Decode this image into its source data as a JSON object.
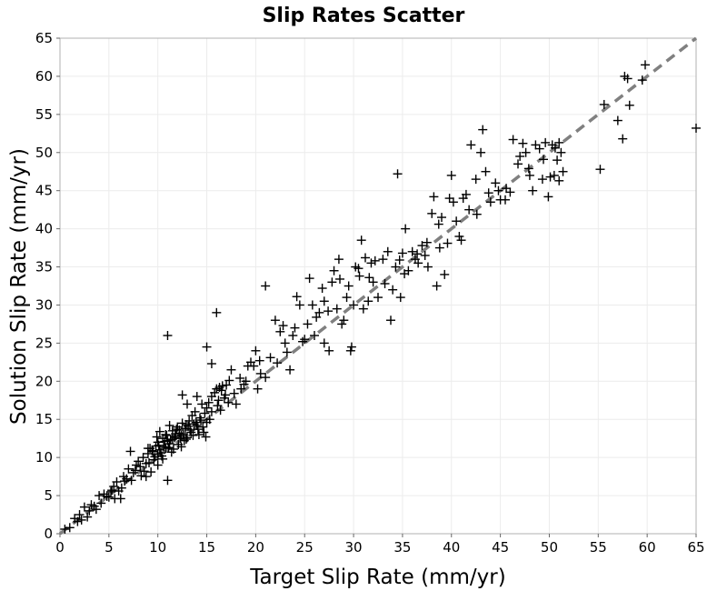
{
  "chart_data": {
    "type": "scatter",
    "title": "Slip Rates Scatter",
    "xlabel": "Target Slip Rate (mm/yr)",
    "ylabel": "Solution Slip Rate (mm/yr)",
    "xlim": [
      0,
      65
    ],
    "ylim": [
      0,
      65
    ],
    "xticks": [
      0,
      5,
      10,
      15,
      20,
      25,
      30,
      35,
      40,
      45,
      50,
      55,
      60,
      65
    ],
    "yticks": [
      0,
      5,
      10,
      15,
      20,
      25,
      30,
      35,
      40,
      45,
      50,
      55,
      60,
      65
    ],
    "grid": true,
    "marker": "plus",
    "reference_line": {
      "style": "dashed",
      "color": "#808080",
      "from": [
        0,
        0
      ],
      "to": [
        65,
        65
      ]
    },
    "series": [
      {
        "color": "#000000",
        "points": [
          [
            0.5,
            0.6
          ],
          [
            1.0,
            0.8
          ],
          [
            1.5,
            2.0
          ],
          [
            2.0,
            2.5
          ],
          [
            2.2,
            1.8
          ],
          [
            2.5,
            3.5
          ],
          [
            3.0,
            3.0
          ],
          [
            3.2,
            3.8
          ],
          [
            4.0,
            5.0
          ],
          [
            4.5,
            5.2
          ],
          [
            5.0,
            4.8
          ],
          [
            5.2,
            5.5
          ],
          [
            5.5,
            6.2
          ],
          [
            5.8,
            6.8
          ],
          [
            6.0,
            5.6
          ],
          [
            6.2,
            4.6
          ],
          [
            6.5,
            7.5
          ],
          [
            6.8,
            7.2
          ],
          [
            7.0,
            8.5
          ],
          [
            7.2,
            10.8
          ],
          [
            7.5,
            8.0
          ],
          [
            7.8,
            9.0
          ],
          [
            8.0,
            9.5
          ],
          [
            8.2,
            8.8
          ],
          [
            8.5,
            10.0
          ],
          [
            8.8,
            9.2
          ],
          [
            9.0,
            10.5
          ],
          [
            9.2,
            11.2
          ],
          [
            9.5,
            10.8
          ],
          [
            9.8,
            11.5
          ],
          [
            10.0,
            12.0
          ],
          [
            10.2,
            11.0
          ],
          [
            10.5,
            12.5
          ],
          [
            10.8,
            13.0
          ],
          [
            11.0,
            12.2
          ],
          [
            11.2,
            11.8
          ],
          [
            11.5,
            13.5
          ],
          [
            11.8,
            12.8
          ],
          [
            12.0,
            14.0
          ],
          [
            12.2,
            13.2
          ],
          [
            12.5,
            14.5
          ],
          [
            12.8,
            13.8
          ],
          [
            13.0,
            12.6
          ],
          [
            13.2,
            14.8
          ],
          [
            13.5,
            15.5
          ],
          [
            13.8,
            16.0
          ],
          [
            14.0,
            14.2
          ],
          [
            14.2,
            13.0
          ],
          [
            14.5,
            17.0
          ],
          [
            14.8,
            15.8
          ],
          [
            15.0,
            16.5
          ],
          [
            15.2,
            17.2
          ],
          [
            15.5,
            16.0
          ],
          [
            15.8,
            18.5
          ],
          [
            16.0,
            19.0
          ],
          [
            16.2,
            17.5
          ],
          [
            16.5,
            18.8
          ],
          [
            16.8,
            17.8
          ],
          [
            17.0,
            19.5
          ],
          [
            17.5,
            21.5
          ],
          [
            8.3,
            7.6
          ],
          [
            8.8,
            7.5
          ],
          [
            9.3,
            8.1
          ],
          [
            9.6,
            9.7
          ],
          [
            10.3,
            10.6
          ],
          [
            10.6,
            11.4
          ],
          [
            10.9,
            12.9
          ],
          [
            11.3,
            12.3
          ],
          [
            11.6,
            11.1
          ],
          [
            11.9,
            13.7
          ],
          [
            12.3,
            12.5
          ],
          [
            12.6,
            13.1
          ],
          [
            12.9,
            14.3
          ],
          [
            13.3,
            13.6
          ],
          [
            13.6,
            12.9
          ],
          [
            13.9,
            14.6
          ],
          [
            14.3,
            15.2
          ],
          [
            14.6,
            14.0
          ],
          [
            14.9,
            12.7
          ],
          [
            15.3,
            15.0
          ],
          [
            10.0,
            10.4
          ],
          [
            10.1,
            11.6
          ],
          [
            10.4,
            10.2
          ],
          [
            10.7,
            12.1
          ],
          [
            11.1,
            11.3
          ],
          [
            11.4,
            10.7
          ],
          [
            11.7,
            12.6
          ],
          [
            12.1,
            11.7
          ],
          [
            12.4,
            12.9
          ],
          [
            12.7,
            12.2
          ],
          [
            9.0,
            11.2
          ],
          [
            9.1,
            9.3
          ],
          [
            9.4,
            10.9
          ],
          [
            9.7,
            10.1
          ],
          [
            10.2,
            13.4
          ],
          [
            10.5,
            9.8
          ],
          [
            10.8,
            11.2
          ],
          [
            11.2,
            14.2
          ],
          [
            11.5,
            12.4
          ],
          [
            11.8,
            13.1
          ],
          [
            12.2,
            13.6
          ],
          [
            12.4,
            11.4
          ],
          [
            12.9,
            12.4
          ],
          [
            13.1,
            14.1
          ],
          [
            13.4,
            13.3
          ],
          [
            13.7,
            14.4
          ],
          [
            14.1,
            13.7
          ],
          [
            14.4,
            14.9
          ],
          [
            14.7,
            13.3
          ],
          [
            15.0,
            14.6
          ],
          [
            11.0,
            26.0
          ],
          [
            11.0,
            7.0
          ],
          [
            10.0,
            9.0
          ],
          [
            12.5,
            18.2
          ],
          [
            13.0,
            17.0
          ],
          [
            14.0,
            18.0
          ],
          [
            15.0,
            24.5
          ],
          [
            15.5,
            22.3
          ],
          [
            15.5,
            18.0
          ],
          [
            16.0,
            29.0
          ],
          [
            16.3,
            19.2
          ],
          [
            16.6,
            19.4
          ],
          [
            16.1,
            16.8
          ],
          [
            16.4,
            16.2
          ],
          [
            16.9,
            18.2
          ],
          [
            17.3,
            20.1
          ],
          [
            18.0,
            17.0
          ],
          [
            18.5,
            19.0
          ],
          [
            19.0,
            20.0
          ],
          [
            19.5,
            22.5
          ],
          [
            19.8,
            22.0
          ],
          [
            20.0,
            24.0
          ],
          [
            20.2,
            19.0
          ],
          [
            20.5,
            21.0
          ],
          [
            21.0,
            20.5
          ],
          [
            21.0,
            32.5
          ],
          [
            22.0,
            28.0
          ],
          [
            22.5,
            26.5
          ],
          [
            23.0,
            25.0
          ],
          [
            23.5,
            21.5
          ],
          [
            24.0,
            27.0
          ],
          [
            24.5,
            30.0
          ],
          [
            25.0,
            25.5
          ],
          [
            25.3,
            27.5
          ],
          [
            25.5,
            33.5
          ],
          [
            25.8,
            30.0
          ],
          [
            26.0,
            26.0
          ],
          [
            26.5,
            29.0
          ],
          [
            27.0,
            30.5
          ],
          [
            27.0,
            25.0
          ],
          [
            27.5,
            24.0
          ],
          [
            27.8,
            33.0
          ],
          [
            28.0,
            34.5
          ],
          [
            28.3,
            29.5
          ],
          [
            28.5,
            36.0
          ],
          [
            28.8,
            27.5
          ],
          [
            29.0,
            28.0
          ],
          [
            29.3,
            31.0
          ],
          [
            29.5,
            32.5
          ],
          [
            29.7,
            24.0
          ],
          [
            29.8,
            24.5
          ],
          [
            30.0,
            30.0
          ],
          [
            30.2,
            35.0
          ],
          [
            30.5,
            34.8
          ],
          [
            30.8,
            38.5
          ],
          [
            31.0,
            29.5
          ],
          [
            31.2,
            36.2
          ],
          [
            31.5,
            30.5
          ],
          [
            31.8,
            35.5
          ],
          [
            32.0,
            33.0
          ],
          [
            32.5,
            31.0
          ],
          [
            33.0,
            36.0
          ],
          [
            33.5,
            37.0
          ],
          [
            33.8,
            28.0
          ],
          [
            34.0,
            32.0
          ],
          [
            34.3,
            35.0
          ],
          [
            34.5,
            47.2
          ],
          [
            34.8,
            31.0
          ],
          [
            35.0,
            36.8
          ],
          [
            35.3,
            40.0
          ],
          [
            35.6,
            34.5
          ],
          [
            36.0,
            37.0
          ],
          [
            36.3,
            36.0
          ],
          [
            36.6,
            35.5
          ],
          [
            37.0,
            37.8
          ],
          [
            37.3,
            36.5
          ],
          [
            37.6,
            35.0
          ],
          [
            38.0,
            42.0
          ],
          [
            38.2,
            44.2
          ],
          [
            38.5,
            32.5
          ],
          [
            38.8,
            37.5
          ],
          [
            39.0,
            41.5
          ],
          [
            39.3,
            34.0
          ],
          [
            39.8,
            44.0
          ],
          [
            40.0,
            47.0
          ],
          [
            40.2,
            43.5
          ],
          [
            40.5,
            41.0
          ],
          [
            40.8,
            39.0
          ],
          [
            41.0,
            38.5
          ],
          [
            41.2,
            44.0
          ],
          [
            41.5,
            44.5
          ],
          [
            41.8,
            42.5
          ],
          [
            42.0,
            51.0
          ],
          [
            42.5,
            46.5
          ],
          [
            43.0,
            50.0
          ],
          [
            43.2,
            53.0
          ],
          [
            43.5,
            47.5
          ],
          [
            44.0,
            43.5
          ],
          [
            44.5,
            46.0
          ],
          [
            44.8,
            45.0
          ],
          [
            45.0,
            43.8
          ],
          [
            45.5,
            43.8
          ],
          [
            46.0,
            44.8
          ],
          [
            46.3,
            51.7
          ],
          [
            46.8,
            48.5
          ],
          [
            47.0,
            49.5
          ],
          [
            47.3,
            51.2
          ],
          [
            47.6,
            50.0
          ],
          [
            48.0,
            47.0
          ],
          [
            48.3,
            45.0
          ],
          [
            48.6,
            51.0
          ],
          [
            49.0,
            50.5
          ],
          [
            49.3,
            46.5
          ],
          [
            49.6,
            51.3
          ],
          [
            49.9,
            44.2
          ],
          [
            50.1,
            46.8
          ],
          [
            50.3,
            51.0
          ],
          [
            50.6,
            50.6
          ],
          [
            50.8,
            49.0
          ],
          [
            51.0,
            51.3
          ],
          [
            51.2,
            50.0
          ],
          [
            51.4,
            47.5
          ],
          [
            50.5,
            47.0
          ],
          [
            51.0,
            46.3
          ],
          [
            55.2,
            47.8
          ],
          [
            55.6,
            56.3
          ],
          [
            57.0,
            54.2
          ],
          [
            57.5,
            51.8
          ],
          [
            57.7,
            60.0
          ],
          [
            58.0,
            59.7
          ],
          [
            58.2,
            56.2
          ],
          [
            59.5,
            59.5
          ],
          [
            59.8,
            61.5
          ],
          [
            65.0,
            53.2
          ],
          [
            36.5,
            36.7
          ],
          [
            34.7,
            35.9
          ],
          [
            35.2,
            34.1
          ],
          [
            37.5,
            38.2
          ],
          [
            32.2,
            35.8
          ],
          [
            30.6,
            33.8
          ],
          [
            28.6,
            33.4
          ],
          [
            26.8,
            32.2
          ],
          [
            24.2,
            31.1
          ],
          [
            26.2,
            28.4
          ],
          [
            23.8,
            26.0
          ],
          [
            22.8,
            27.3
          ],
          [
            27.4,
            29.2
          ],
          [
            31.6,
            33.6
          ],
          [
            33.2,
            32.8
          ],
          [
            38.7,
            40.6
          ],
          [
            39.6,
            38.1
          ],
          [
            42.6,
            41.9
          ],
          [
            43.8,
            44.7
          ],
          [
            45.6,
            45.3
          ],
          [
            47.9,
            47.9
          ],
          [
            49.4,
            49.1
          ],
          [
            6.3,
            6.0
          ],
          [
            6.6,
            6.9
          ],
          [
            7.3,
            7.0
          ],
          [
            7.7,
            8.3
          ],
          [
            5.6,
            4.6
          ],
          [
            4.2,
            4.0
          ],
          [
            3.5,
            3.6
          ],
          [
            2.8,
            2.2
          ],
          [
            1.8,
            1.6
          ],
          [
            3.7,
            3.2
          ],
          [
            4.8,
            4.9
          ],
          [
            5.3,
            5.7
          ],
          [
            8.6,
            8.2
          ],
          [
            9.9,
            12.7
          ],
          [
            17.2,
            17.2
          ],
          [
            18.8,
            19.6
          ],
          [
            19.2,
            22.0
          ],
          [
            20.4,
            22.7
          ],
          [
            21.5,
            23.1
          ],
          [
            22.2,
            22.4
          ],
          [
            23.2,
            23.8
          ],
          [
            24.8,
            25.2
          ],
          [
            18.4,
            20.4
          ],
          [
            17.8,
            18.4
          ]
        ]
      }
    ]
  }
}
